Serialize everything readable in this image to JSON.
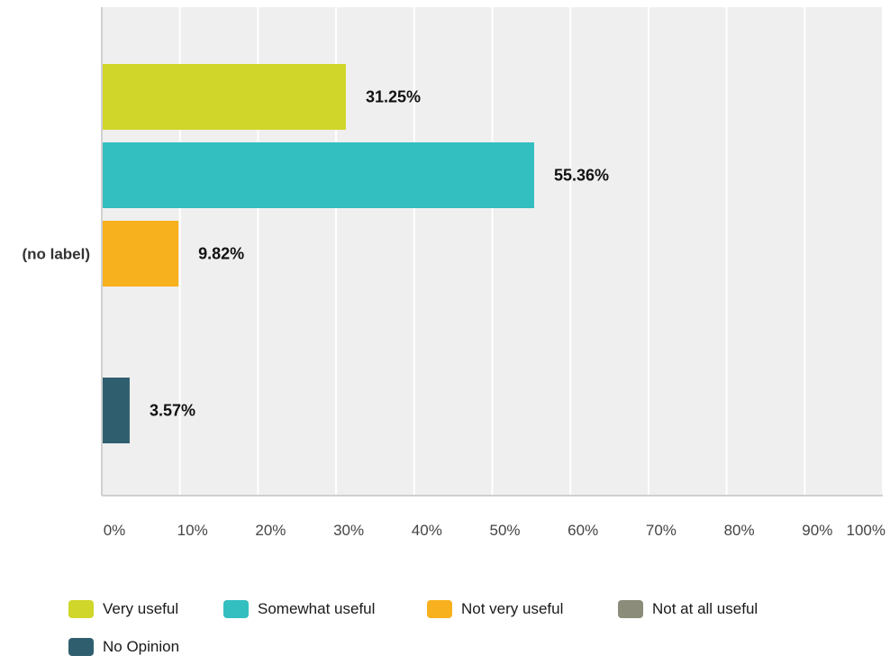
{
  "chart_data": {
    "type": "bar",
    "orientation": "horizontal",
    "categories": [
      "(no label)"
    ],
    "series": [
      {
        "name": "Very useful",
        "values": [
          31.25
        ],
        "color": "#d0d62a",
        "label": "31.25%"
      },
      {
        "name": "Somewhat useful",
        "values": [
          55.36
        ],
        "color": "#33bec0",
        "label": "55.36%"
      },
      {
        "name": "Not very useful",
        "values": [
          9.82
        ],
        "color": "#f7b11e",
        "label": "9.82%"
      },
      {
        "name": "Not at all useful",
        "values": [
          0
        ],
        "color": "#8c8c7a",
        "label": ""
      },
      {
        "name": "No Opinion",
        "values": [
          3.57
        ],
        "color": "#2f5f6f",
        "label": "3.57%"
      }
    ],
    "xlim": [
      0,
      100
    ],
    "x_ticks": [
      "0%",
      "10%",
      "20%",
      "30%",
      "40%",
      "50%",
      "60%",
      "70%",
      "80%",
      "90%",
      "100%"
    ],
    "grid": true,
    "legend_position": "bottom",
    "title": "",
    "xlabel": "",
    "ylabel": ""
  }
}
